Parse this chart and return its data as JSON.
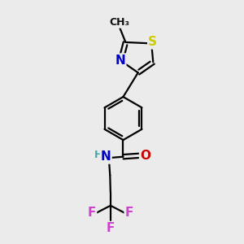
{
  "bg_color": "#ebebeb",
  "bond_color": "#000000",
  "bond_width": 1.6,
  "atom_colors": {
    "S": "#cccc00",
    "N": "#0000cc",
    "O": "#cc0000",
    "F": "#cc44cc",
    "H": "#44aaaa",
    "C": "#000000"
  },
  "font_size": 11
}
